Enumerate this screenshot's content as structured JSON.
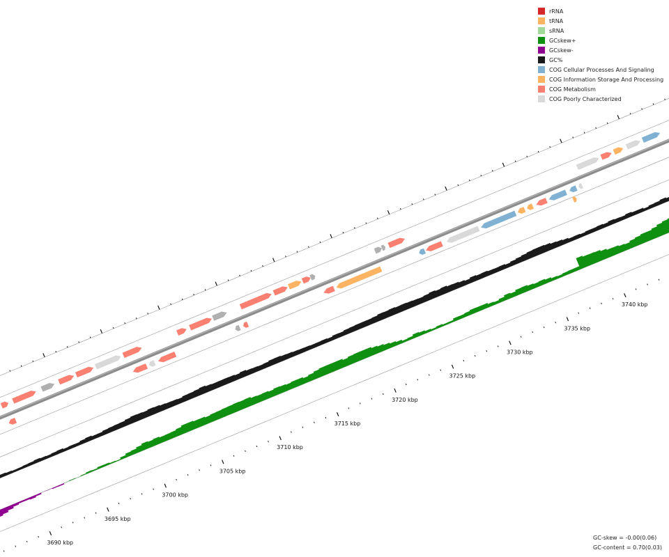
{
  "legend": [
    {
      "label": "rRNA",
      "color": "#d62728"
    },
    {
      "label": "tRNA",
      "color": "#fdb462"
    },
    {
      "label": "sRNA",
      "color": "#a1d99b"
    },
    {
      "label": "GCskew+",
      "color": "#109010"
    },
    {
      "label": "GCskew-",
      "color": "#900090"
    },
    {
      "label": "GC%",
      "color": "#1a1a1a"
    },
    {
      "label": "COG Cellular Processes And Signaling",
      "color": "#80b1d3"
    },
    {
      "label": "COG Information Storage And Processing",
      "color": "#fdb462"
    },
    {
      "label": "COG Metabolism",
      "color": "#fb8072"
    },
    {
      "label": "COG Poorly Characterized",
      "color": "#d9d9d9"
    }
  ],
  "ticks": [
    "3690 kbp",
    "3695 kbp",
    "3700 kbp",
    "3705 kbp",
    "3710 kbp",
    "3715 kbp",
    "3720 kbp",
    "3725 kbp",
    "3730 kbp",
    "3735 kbp",
    "3740 kbp"
  ],
  "stats": {
    "gc_skew": "GC-skew = -0.00(0.06)",
    "gc_content": "GC-content = 0.70(0.03)"
  },
  "colors": {
    "backbone": "#8c8c8c",
    "track_line": "#999999",
    "gc": "#1a1a1a",
    "skew_pos": "#109010",
    "skew_neg": "#900090",
    "cog_cell": "#80b1d3",
    "cog_info": "#fdb462",
    "cog_met": "#fb8072",
    "cog_poor": "#d9d9d9",
    "other": "#b0b0b0"
  },
  "features": [
    {
      "kb": 3687.8,
      "len": 2.0,
      "strand": 1,
      "type": "cog_poor"
    },
    {
      "kb": 3690.3,
      "len": 0.6,
      "strand": -1,
      "type": "cog_met"
    },
    {
      "kb": 3690.3,
      "len": 0.6,
      "strand": 1,
      "type": "cog_met"
    },
    {
      "kb": 3691.3,
      "len": 2.0,
      "strand": 1,
      "type": "cog_met"
    },
    {
      "kb": 3693.8,
      "len": 1.1,
      "strand": 1,
      "type": "other"
    },
    {
      "kb": 3695.3,
      "len": 1.3,
      "strand": 1,
      "type": "cog_met"
    },
    {
      "kb": 3696.8,
      "len": 1.5,
      "strand": 1,
      "type": "cog_met"
    },
    {
      "kb": 3698.5,
      "len": 2.2,
      "strand": 1,
      "type": "cog_poor"
    },
    {
      "kb": 3700.9,
      "len": 1.6,
      "strand": 1,
      "type": "cog_met"
    },
    {
      "kb": 3701.1,
      "len": 1.2,
      "strand": -1,
      "type": "cog_met"
    },
    {
      "kb": 3702.5,
      "len": 0.5,
      "strand": -1,
      "type": "cog_poor"
    },
    {
      "kb": 3703.3,
      "len": 1.5,
      "strand": -1,
      "type": "cog_met"
    },
    {
      "kb": 3705.6,
      "len": 0.8,
      "strand": 1,
      "type": "cog_met"
    },
    {
      "kb": 3706.7,
      "len": 1.9,
      "strand": 1,
      "type": "cog_met"
    },
    {
      "kb": 3708.7,
      "len": 1.2,
      "strand": 1,
      "type": "other"
    },
    {
      "kb": 3710.0,
      "len": 0.4,
      "strand": -1,
      "type": "other"
    },
    {
      "kb": 3710.7,
      "len": 0.4,
      "strand": -1,
      "type": "cog_met"
    },
    {
      "kb": 3711.1,
      "len": 2.7,
      "strand": 1,
      "type": "cog_met"
    },
    {
      "kb": 3714.0,
      "len": 1.2,
      "strand": 1,
      "type": "cog_met"
    },
    {
      "kb": 3715.3,
      "len": 1.1,
      "strand": 1,
      "type": "cog_info"
    },
    {
      "kb": 3716.5,
      "len": 0.7,
      "strand": 1,
      "type": "cog_met"
    },
    {
      "kb": 3717.2,
      "len": 0.4,
      "strand": 1,
      "type": "other"
    },
    {
      "kb": 3717.7,
      "len": 0.9,
      "strand": -1,
      "type": "cog_met"
    },
    {
      "kb": 3718.8,
      "len": 3.9,
      "strand": -1,
      "type": "cog_info"
    },
    {
      "kb": 3722.8,
      "len": 0.6,
      "strand": 1,
      "type": "other"
    },
    {
      "kb": 3723.4,
      "len": 0.3,
      "strand": 1,
      "type": "other"
    },
    {
      "kb": 3724.0,
      "len": 1.4,
      "strand": 1,
      "type": "cog_met"
    },
    {
      "kb": 3726.0,
      "len": 0.5,
      "strand": -1,
      "type": "cog_cell"
    },
    {
      "kb": 3726.6,
      "len": 1.4,
      "strand": -1,
      "type": "cog_met"
    },
    {
      "kb": 3728.4,
      "len": 2.8,
      "strand": -1,
      "type": "cog_poor"
    },
    {
      "kb": 3731.4,
      "len": 3.0,
      "strand": -1,
      "type": "cog_cell"
    },
    {
      "kb": 3734.6,
      "len": 0.6,
      "strand": -1,
      "type": "cog_info"
    },
    {
      "kb": 3735.4,
      "len": 0.5,
      "strand": -1,
      "type": "cog_info"
    },
    {
      "kb": 3736.2,
      "len": 0.9,
      "strand": -1,
      "type": "cog_met"
    },
    {
      "kb": 3737.3,
      "len": 1.5,
      "strand": -1,
      "type": "cog_cell"
    },
    {
      "kb": 3739.1,
      "len": 0.6,
      "strand": -1,
      "type": "cog_cell"
    },
    {
      "kb": 3739.9,
      "len": 0.3,
      "strand": -1,
      "type": "cog_poor"
    },
    {
      "kb": 3739.1,
      "len": 0.3,
      "strand": -2,
      "type": "cog_info"
    },
    {
      "kb": 3740.4,
      "len": 1.9,
      "strand": 1,
      "type": "cog_poor"
    },
    {
      "kb": 3742.5,
      "len": 0.9,
      "strand": 1,
      "type": "cog_met"
    },
    {
      "kb": 3743.6,
      "len": 0.8,
      "strand": 1,
      "type": "cog_info"
    },
    {
      "kb": 3744.7,
      "len": 1.2,
      "strand": 1,
      "type": "cog_poor"
    },
    {
      "kb": 3746.1,
      "len": 1.5,
      "strand": 1,
      "type": "cog_cell"
    }
  ]
}
